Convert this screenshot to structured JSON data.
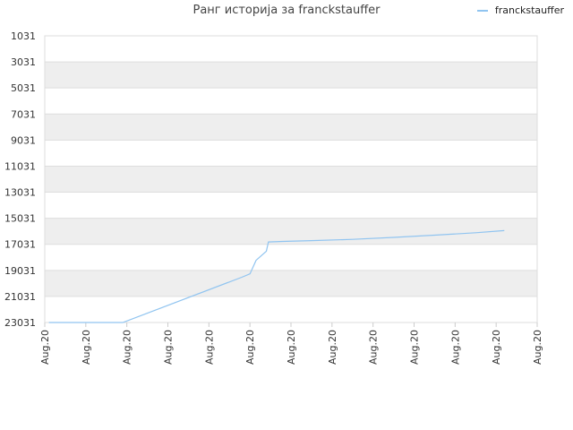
{
  "chart_data": {
    "type": "line",
    "title": "Ранг историја за franckstauffer",
    "xlabel": "",
    "ylabel": "",
    "legend": {
      "position": "top-right",
      "entries": [
        "franckstauffer"
      ]
    },
    "grid": true,
    "y_inverted": true,
    "ylim": [
      23031,
      1031
    ],
    "y_ticks": [
      1031,
      3031,
      5031,
      7031,
      9031,
      11031,
      13031,
      15031,
      17031,
      19031,
      21031,
      23031
    ],
    "x_tick_labels": [
      "Aug.20",
      "Aug.20",
      "Aug.20",
      "Aug.20",
      "Aug.20",
      "Aug.20",
      "Aug.20",
      "Aug.20",
      "Aug.20",
      "Aug.20",
      "Aug.20",
      "Aug.20",
      "Aug.20"
    ],
    "xlim": [
      0,
      12
    ],
    "series": [
      {
        "name": "franckstauffer",
        "color": "#90c4f0",
        "points": [
          [
            0.1,
            23031
          ],
          [
            1.9,
            23031
          ],
          [
            4.8,
            19560
          ],
          [
            5.0,
            19300
          ],
          [
            5.15,
            18260
          ],
          [
            5.4,
            17560
          ],
          [
            5.45,
            16850
          ],
          [
            5.8,
            16810
          ],
          [
            6.5,
            16750
          ],
          [
            7.5,
            16650
          ],
          [
            8.5,
            16500
          ],
          [
            9.5,
            16330
          ],
          [
            10.5,
            16140
          ],
          [
            11.2,
            15980
          ]
        ]
      }
    ]
  }
}
